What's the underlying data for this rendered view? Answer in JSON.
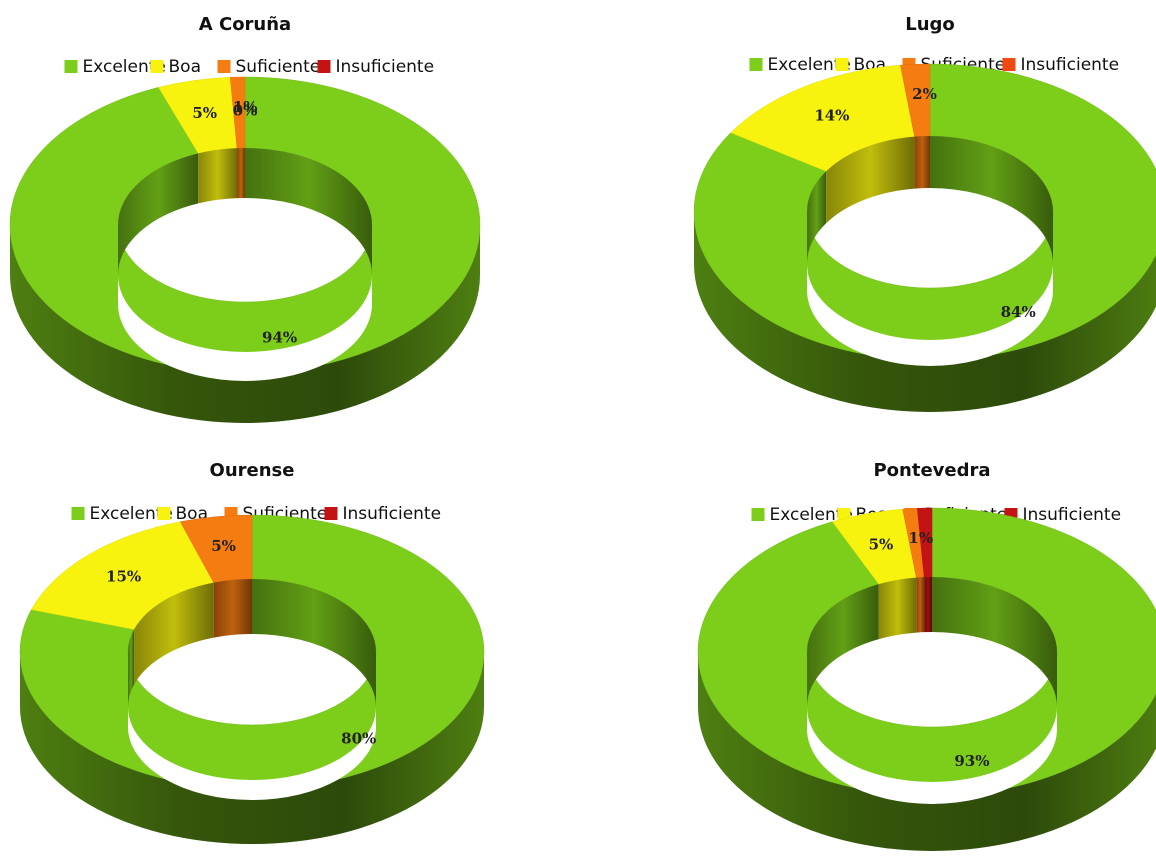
{
  "chart_data": [
    {
      "type": "pie",
      "variant": "3d-doughnut",
      "title": "A Coruña",
      "legend_position": "top",
      "categories": [
        "Excelente",
        "Boa",
        "Suficiente",
        "Insuficiente"
      ],
      "values": [
        94,
        5,
        1,
        0
      ],
      "labels": [
        "94%",
        "5%",
        "1%",
        "0%"
      ],
      "colors": [
        "#7dcd1b",
        "#f7f30e",
        "#f57c10",
        "#c41313"
      ]
    },
    {
      "type": "pie",
      "variant": "3d-doughnut",
      "title": "Lugo",
      "legend_position": "top",
      "categories": [
        "Excelente",
        "Boa",
        "Suficiente",
        "Insuficiente"
      ],
      "values": [
        84,
        14,
        2,
        0
      ],
      "labels": [
        "84%",
        "14%",
        "2%",
        ""
      ],
      "colors": [
        "#7dcd1b",
        "#f7f30e",
        "#f57c10",
        "#f04a12"
      ]
    },
    {
      "type": "pie",
      "variant": "3d-doughnut",
      "title": "Ourense",
      "legend_position": "top",
      "categories": [
        "Excelente",
        "Boa",
        "Suficiente",
        "Insuficiente"
      ],
      "values": [
        80,
        15,
        5,
        0
      ],
      "labels": [
        "80%",
        "15%",
        "5%",
        ""
      ],
      "colors": [
        "#7dcd1b",
        "#f7f30e",
        "#f57c10",
        "#c41313"
      ]
    },
    {
      "type": "pie",
      "variant": "3d-doughnut",
      "title": "Pontevedra",
      "legend_position": "top",
      "categories": [
        "Excelente",
        "Boa",
        "Suficiente",
        "Insuficiente"
      ],
      "values": [
        93,
        5,
        1,
        1
      ],
      "labels": [
        "93%",
        "5%",
        "1%",
        ""
      ],
      "colors": [
        "#7dcd1b",
        "#f7f30e",
        "#f57c10",
        "#c41313"
      ]
    }
  ]
}
